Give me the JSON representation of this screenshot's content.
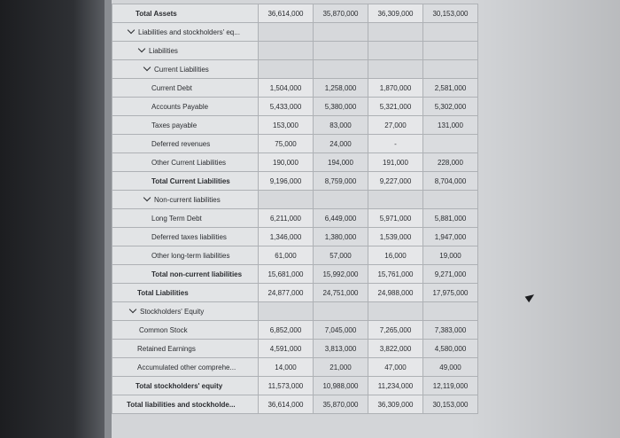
{
  "rows": [
    {
      "label": "Total Assets",
      "values": [
        "36,614,000",
        "35,870,000",
        "36,309,000",
        "30,153,000"
      ]
    },
    {
      "label": "Liabilities and stockholders' eq..."
    },
    {
      "label": "Liabilities"
    },
    {
      "label": "Current Liabilities"
    },
    {
      "label": "Current Debt",
      "values": [
        "1,504,000",
        "1,258,000",
        "1,870,000",
        "2,581,000"
      ]
    },
    {
      "label": "Accounts Payable",
      "values": [
        "5,433,000",
        "5,380,000",
        "5,321,000",
        "5,302,000"
      ]
    },
    {
      "label": "Taxes payable",
      "values": [
        "153,000",
        "83,000",
        "27,000",
        "131,000"
      ]
    },
    {
      "label": "Deferred revenues",
      "values": [
        "75,000",
        "24,000",
        "-",
        ""
      ]
    },
    {
      "label": "Other Current Liabilities",
      "values": [
        "190,000",
        "194,000",
        "191,000",
        "228,000"
      ]
    },
    {
      "label": "Total Current Liabilities",
      "values": [
        "9,196,000",
        "8,759,000",
        "9,227,000",
        "8,704,000"
      ]
    },
    {
      "label": "Non-current liabilities"
    },
    {
      "label": "Long Term Debt",
      "values": [
        "6,211,000",
        "6,449,000",
        "5,971,000",
        "5,881,000"
      ]
    },
    {
      "label": "Deferred taxes liabilities",
      "values": [
        "1,346,000",
        "1,380,000",
        "1,539,000",
        "1,947,000"
      ]
    },
    {
      "label": "Other long-term liabilities",
      "values": [
        "61,000",
        "57,000",
        "16,000",
        "19,000"
      ]
    },
    {
      "label": "Total non-current liabilities",
      "values": [
        "15,681,000",
        "15,992,000",
        "15,761,000",
        "9,271,000"
      ]
    },
    {
      "label": "Total Liabilities",
      "values": [
        "24,877,000",
        "24,751,000",
        "24,988,000",
        "17,975,000"
      ]
    },
    {
      "label": "Stockholders' Equity"
    },
    {
      "label": "Common Stock",
      "values": [
        "6,852,000",
        "7,045,000",
        "7,265,000",
        "7,383,000"
      ]
    },
    {
      "label": "Retained Earnings",
      "values": [
        "4,591,000",
        "3,813,000",
        "3,822,000",
        "4,580,000"
      ]
    },
    {
      "label": "Accumulated other comprehe...",
      "values": [
        "14,000",
        "21,000",
        "47,000",
        "49,000"
      ]
    },
    {
      "label": "Total stockholders' equity",
      "values": [
        "11,573,000",
        "10,988,000",
        "11,234,000",
        "12,119,000"
      ]
    },
    {
      "label": "Total liabilities and stockholde...",
      "values": [
        "36,614,000",
        "35,870,000",
        "36,309,000",
        "30,153,000"
      ]
    }
  ]
}
